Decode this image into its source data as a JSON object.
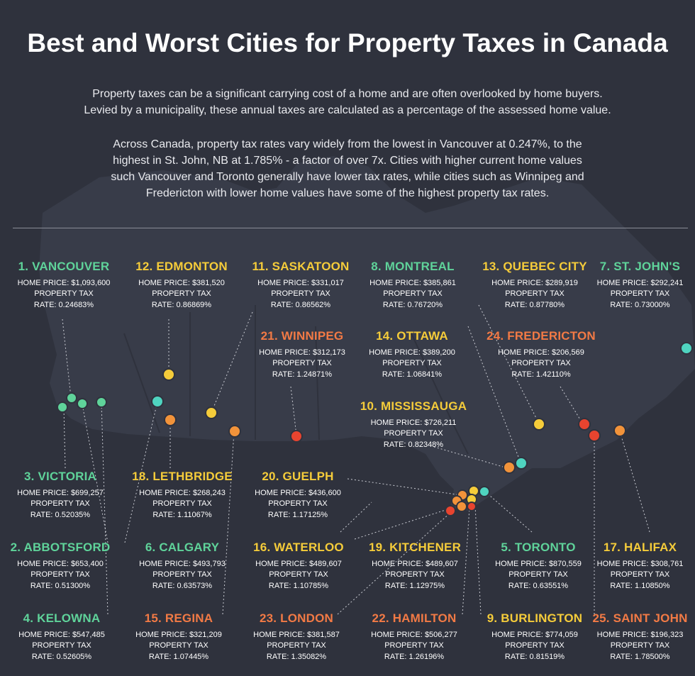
{
  "title": "Best and Worst Cities for Property Taxes in Canada",
  "intro": [
    "Property taxes can be a significant carrying cost of a home and are often overlooked by home buyers.",
    "Levied by a municipality, these annual taxes are calculated as a percentage of the assessed home value."
  ],
  "body": [
    "Across Canada, property tax rates vary widely from the lowest in Vancouver at 0.247%, to the",
    "highest in St. John, NB at 1.785% - a factor of over 7x. Cities with higher current home values",
    "such Vancouver and Toronto generally have lower tax rates, while cities such as Winnipeg and",
    "Fredericton with lower home values have some of the highest property tax rates."
  ],
  "colors": {
    "green": "#5fd39a",
    "teal": "#4fd4c0",
    "yellow": "#f5cc3a",
    "orange": "#f2933a",
    "red": "#e8442f",
    "background": "#2f323d",
    "map": "#3d4150"
  },
  "tax_label": "PROPERTY TAX",
  "cities": [
    {
      "name": "1. VANCOUVER",
      "price": "HOME PRICE: $1,093,600",
      "rate": "RATE: 0.24683%",
      "color": "green"
    },
    {
      "name": "12. EDMONTON",
      "price": "HOME PRICE: $381,520",
      "rate": "RATE: 0.86869%",
      "color": "yellow"
    },
    {
      "name": "11. SASKATOON",
      "price": "HOME PRICE: $331,017",
      "rate": "RATE: 0.86562%",
      "color": "yellow"
    },
    {
      "name": "8. MONTREAL",
      "price": "HOME PRICE: $385,861",
      "rate": "RATE: 0.76720%",
      "color": "green"
    },
    {
      "name": "13. QUEBEC CITY",
      "price": "HOME PRICE: $289,919",
      "rate": "RATE: 0.87780%",
      "color": "yellow"
    },
    {
      "name": "7. ST. JOHN'S",
      "price": "HOME PRICE: $292,241",
      "rate": "RATE: 0.73000%",
      "color": "green"
    },
    {
      "name": "21. WINNIPEG",
      "price": "HOME PRICE: $312,173",
      "rate": "RATE: 1.24871%",
      "color": "orange"
    },
    {
      "name": "14. OTTAWA",
      "price": "HOME PRICE: $389,200",
      "rate": "RATE: 1.06841%",
      "color": "yellow"
    },
    {
      "name": "24. FREDERICTON",
      "price": "HOME PRICE: $206,569",
      "rate": "RATE: 1.42110%",
      "color": "orange"
    },
    {
      "name": "10. MISSISSAUGA",
      "price": "HOME PRICE: $726,211",
      "rate": "RATE: 0.82348%",
      "color": "yellow"
    },
    {
      "name": "3. VICTORIA",
      "price": "HOME PRICE: $699,257",
      "rate": "RATE: 0.52035%",
      "color": "green"
    },
    {
      "name": "18. LETHBRIDGE",
      "price": "HOME PRICE: $268,243",
      "rate": "RATE: 1.11067%",
      "color": "yellow"
    },
    {
      "name": "20. GUELPH",
      "price": "HOME PRICE: $436,600",
      "rate": "RATE: 1.17125%",
      "color": "yellow"
    },
    {
      "name": "2. ABBOTSFORD",
      "price": "HOME PRICE: $653,400",
      "rate": "RATE: 0.51300%",
      "color": "green"
    },
    {
      "name": "6. CALGARY",
      "price": "HOME PRICE: $493,793",
      "rate": "RATE: 0.63573%",
      "color": "green"
    },
    {
      "name": "16. WATERLOO",
      "price": "HOME PRICE: $489,607",
      "rate": "RATE: 1.10785%",
      "color": "yellow"
    },
    {
      "name": "19. KITCHENER",
      "price": "HOME PRICE: $489,607",
      "rate": "RATE: 1.12975%",
      "color": "yellow"
    },
    {
      "name": "5. TORONTO",
      "price": "HOME PRICE: $870,559",
      "rate": "RATE: 0.63551%",
      "color": "green"
    },
    {
      "name": "17. HALIFAX",
      "price": "HOME PRICE: $308,761",
      "rate": "RATE: 1.10850%",
      "color": "yellow"
    },
    {
      "name": "4. KELOWNA",
      "price": "HOME PRICE: $547,485",
      "rate": "RATE: 0.52605%",
      "color": "green"
    },
    {
      "name": "15. REGINA",
      "price": "HOME PRICE: $321,209",
      "rate": "RATE: 1.07445%",
      "color": "orange"
    },
    {
      "name": "23. LONDON",
      "price": "HOME PRICE: $381,587",
      "rate": "RATE: 1.35082%",
      "color": "orange"
    },
    {
      "name": "22. HAMILTON",
      "price": "HOME PRICE: $506,277",
      "rate": "RATE: 1.26196%",
      "color": "orange"
    },
    {
      "name": "9. BURLINGTON",
      "price": "HOME PRICE: $774,059",
      "rate": "RATE: 0.81519%",
      "color": "yellow"
    },
    {
      "name": "25. SAINT JOHN",
      "price": "HOME PRICE: $196,323",
      "rate": "RATE: 1.78500%",
      "color": "orange"
    }
  ]
}
